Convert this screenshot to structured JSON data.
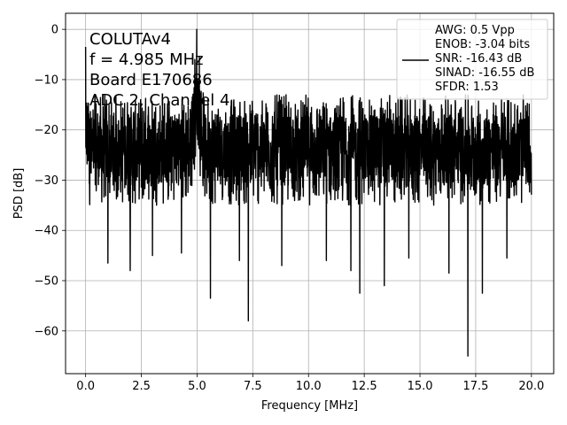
{
  "chart_data": {
    "type": "line",
    "xlabel": "Frequency [MHz]",
    "ylabel": "PSD [dB]",
    "xlim": [
      -0.9,
      21.0
    ],
    "ylim": [
      -68.5,
      3.2
    ],
    "xticks": [
      0.0,
      2.5,
      5.0,
      7.5,
      10.0,
      12.5,
      15.0,
      17.5,
      20.0
    ],
    "xtick_labels": [
      "0.0",
      "2.5",
      "5.0",
      "7.5",
      "10.0",
      "12.5",
      "15.0",
      "17.5",
      "20.0"
    ],
    "yticks": [
      0,
      -10,
      -20,
      -30,
      -40,
      -50,
      -60
    ],
    "ytick_labels": [
      "0",
      "−10",
      "−20",
      "−30",
      "−40",
      "−50",
      "−60"
    ],
    "grid": true,
    "annotation": {
      "lines": [
        "COLUTAv4",
        "f = 4.985 MHz",
        "Board E170686",
        "ADC 2, Channel 4"
      ]
    },
    "legend": {
      "placement": "top-right",
      "lines": [
        "AWG: 0.5 Vpp",
        "ENOB: -3.04 bits",
        "SNR: -16.43 dB",
        "SINAD: -16.55 dB",
        "SFDR: 1.53"
      ]
    },
    "series": [
      {
        "color": "#000000",
        "x_start": 0.0,
        "x_end": 20.0,
        "noise_floor_mean": -24,
        "noise_floor_range": [
          -35,
          -13
        ],
        "dips": [
          {
            "x": 1.0,
            "y": -46.5
          },
          {
            "x": 2.0,
            "y": -48.0
          },
          {
            "x": 3.0,
            "y": -45.0
          },
          {
            "x": 4.3,
            "y": -44.5
          },
          {
            "x": 5.6,
            "y": -53.5
          },
          {
            "x": 6.9,
            "y": -46.0
          },
          {
            "x": 7.3,
            "y": -58.0
          },
          {
            "x": 8.8,
            "y": -47.0
          },
          {
            "x": 10.8,
            "y": -46.0
          },
          {
            "x": 11.9,
            "y": -48.0
          },
          {
            "x": 12.3,
            "y": -52.5
          },
          {
            "x": 13.4,
            "y": -51.0
          },
          {
            "x": 14.5,
            "y": -45.5
          },
          {
            "x": 16.3,
            "y": -48.5
          },
          {
            "x": 17.15,
            "y": -65.0
          },
          {
            "x": 17.8,
            "y": -52.5
          },
          {
            "x": 18.9,
            "y": -45.5
          }
        ],
        "peaks": [
          {
            "x": 0.0,
            "y": -3.5
          },
          {
            "x": 4.985,
            "y": 0.0
          },
          {
            "x": 5.1,
            "y": -5.5
          },
          {
            "x": 4.9,
            "y": -6.0
          }
        ]
      }
    ]
  }
}
